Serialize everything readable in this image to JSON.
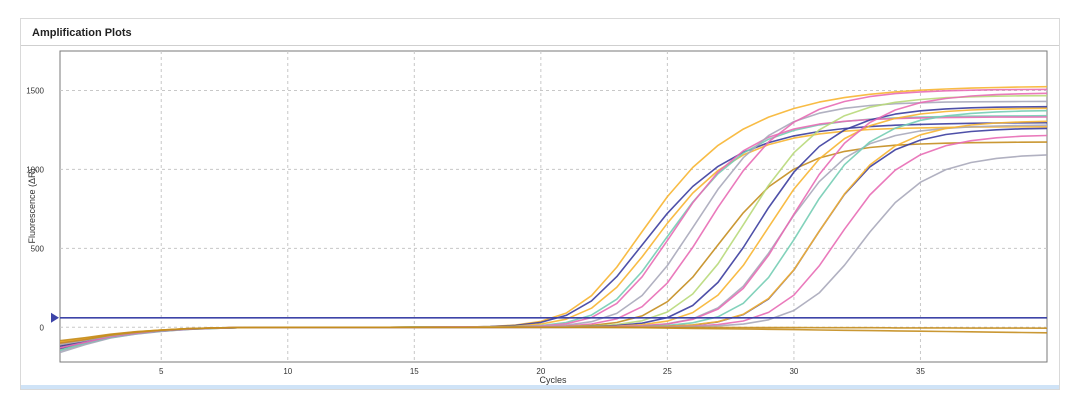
{
  "panel": {
    "title": "Amplification Plots"
  },
  "chart_data": {
    "type": "line",
    "title": "Amplification Plots",
    "xlabel": "Cycles",
    "ylabel": "Fluorescence (ΔR)",
    "xlim": [
      1,
      40
    ],
    "ylim": [
      -220,
      1750
    ],
    "x_ticks": [
      5,
      10,
      15,
      20,
      25,
      30,
      35
    ],
    "y_ticks": [
      0,
      500,
      1000,
      1500
    ],
    "grid": true,
    "threshold": 60,
    "threshold_color": "#3d44a8",
    "x": [
      1,
      2,
      3,
      4,
      5,
      6,
      7,
      8,
      9,
      10,
      11,
      12,
      13,
      14,
      15,
      16,
      17,
      18,
      19,
      20,
      21,
      22,
      23,
      24,
      25,
      26,
      27,
      28,
      29,
      30,
      31,
      32,
      33,
      34,
      35,
      36,
      37,
      38,
      39,
      40
    ],
    "series": [
      {
        "color": "#f7b531",
        "values": [
          -100,
          -72,
          -48,
          -30,
          -18,
          -10,
          -5,
          -2,
          -1,
          -1,
          0,
          0,
          0,
          0,
          1,
          1,
          2,
          5,
          14,
          37,
          90,
          200,
          381,
          606,
          828,
          1012,
          1152,
          1255,
          1331,
          1386,
          1426,
          1455,
          1476,
          1491,
          1502,
          1509,
          1515,
          1519,
          1522,
          1524
        ]
      },
      {
        "color": "#3b3d9e",
        "values": [
          -130,
          -95,
          -60,
          -38,
          -22,
          -12,
          -6,
          -3,
          -1,
          -1,
          0,
          0,
          0,
          0,
          1,
          1,
          2,
          4,
          12,
          31,
          75,
          167,
          321,
          521,
          722,
          892,
          1019,
          1109,
          1170,
          1212,
          1240,
          1259,
          1271,
          1280,
          1285,
          1289,
          1292,
          1294,
          1295,
          1296
        ]
      },
      {
        "color": "#f7b531",
        "values": [
          -140,
          -98,
          -62,
          -40,
          -24,
          -13,
          -7,
          -3,
          -2,
          -1,
          0,
          0,
          0,
          0,
          1,
          1,
          1,
          3,
          7,
          20,
          51,
          121,
          253,
          446,
          659,
          850,
          993,
          1092,
          1157,
          1198,
          1225,
          1242,
          1253,
          1259,
          1263,
          1266,
          1268,
          1269,
          1270,
          1270
        ]
      },
      {
        "color": "#74cdb4",
        "values": [
          -120,
          -90,
          -58,
          -36,
          -22,
          -12,
          -6,
          -3,
          -1,
          -1,
          0,
          0,
          0,
          0,
          1,
          1,
          1,
          2,
          4,
          11,
          30,
          77,
          178,
          353,
          575,
          793,
          973,
          1103,
          1191,
          1247,
          1282,
          1304,
          1318,
          1326,
          1332,
          1335,
          1337,
          1338,
          1339,
          1340
        ]
      },
      {
        "color": "#e86bb5",
        "values": [
          -110,
          -84,
          -54,
          -34,
          -20,
          -11,
          -5,
          -2,
          -1,
          -1,
          0,
          0,
          0,
          0,
          0,
          1,
          1,
          1,
          3,
          8,
          22,
          61,
          151,
          320,
          550,
          788,
          983,
          1118,
          1204,
          1256,
          1287,
          1305,
          1316,
          1322,
          1326,
          1328,
          1330,
          1331,
          1331,
          1332
        ]
      },
      {
        "color": "#a9a9ba",
        "values": [
          -150,
          -105,
          -66,
          -42,
          -25,
          -14,
          -7,
          -3,
          -2,
          -1,
          0,
          0,
          0,
          0,
          0,
          0,
          1,
          1,
          2,
          5,
          13,
          35,
          88,
          201,
          391,
          631,
          874,
          1074,
          1214,
          1303,
          1356,
          1387,
          1405,
          1416,
          1422,
          1426,
          1428,
          1429,
          1430,
          1431
        ]
      },
      {
        "color": "#e86bb5",
        "values": [
          -105,
          -80,
          -52,
          -33,
          -20,
          -11,
          -5,
          -2,
          -1,
          -1,
          0,
          0,
          0,
          0,
          0,
          0,
          1,
          1,
          1,
          3,
          8,
          21,
          53,
          130,
          281,
          506,
          760,
          992,
          1174,
          1299,
          1380,
          1430,
          1461,
          1480,
          1491,
          1498,
          1502,
          1505,
          1506,
          1507
        ]
      },
      {
        "color": "#c48d1e",
        "values": [
          -95,
          -74,
          -49,
          -31,
          -19,
          -10,
          -5,
          -2,
          -1,
          -1,
          0,
          0,
          0,
          0,
          0,
          0,
          0,
          1,
          1,
          2,
          5,
          12,
          30,
          72,
          162,
          317,
          522,
          725,
          889,
          1001,
          1072,
          1114,
          1139,
          1153,
          1161,
          1166,
          1169,
          1171,
          1172,
          1173
        ]
      },
      {
        "color": "#b8d97a",
        "values": [
          -125,
          -92,
          -59,
          -37,
          -22,
          -12,
          -6,
          -3,
          -1,
          -1,
          0,
          0,
          0,
          0,
          0,
          0,
          0,
          1,
          1,
          2,
          3,
          7,
          17,
          41,
          97,
          211,
          402,
          649,
          900,
          1106,
          1250,
          1340,
          1394,
          1425,
          1443,
          1454,
          1460,
          1464,
          1466,
          1467
        ]
      },
      {
        "color": "#3b3d9e",
        "values": [
          -135,
          -97,
          -61,
          -39,
          -23,
          -13,
          -6,
          -3,
          -2,
          -1,
          0,
          0,
          0,
          0,
          0,
          0,
          0,
          0,
          1,
          1,
          2,
          5,
          11,
          26,
          61,
          138,
          284,
          505,
          758,
          983,
          1145,
          1250,
          1313,
          1350,
          1371,
          1383,
          1390,
          1394,
          1396,
          1397
        ]
      },
      {
        "color": "#f7b531",
        "values": [
          -115,
          -87,
          -56,
          -35,
          -21,
          -11,
          -6,
          -2,
          -1,
          -1,
          0,
          0,
          0,
          0,
          0,
          0,
          0,
          0,
          1,
          1,
          2,
          3,
          7,
          16,
          39,
          93,
          204,
          392,
          634,
          875,
          1066,
          1195,
          1276,
          1323,
          1351,
          1367,
          1376,
          1382,
          1385,
          1387
        ]
      },
      {
        "color": "#a9a9ba",
        "values": [
          -160,
          -110,
          -68,
          -43,
          -26,
          -14,
          -7,
          -3,
          -2,
          -1,
          0,
          0,
          0,
          0,
          0,
          0,
          0,
          0,
          0,
          1,
          1,
          2,
          4,
          9,
          22,
          53,
          123,
          260,
          469,
          710,
          922,
          1071,
          1162,
          1214,
          1244,
          1260,
          1270,
          1275,
          1278,
          1280
        ]
      },
      {
        "color": "#e86bb5",
        "values": [
          -100,
          -77,
          -51,
          -32,
          -19,
          -10,
          -5,
          -2,
          -1,
          -1,
          0,
          0,
          0,
          0,
          0,
          0,
          0,
          0,
          0,
          1,
          1,
          2,
          4,
          9,
          21,
          50,
          115,
          246,
          456,
          716,
          968,
          1166,
          1297,
          1376,
          1423,
          1449,
          1465,
          1474,
          1479,
          1482
        ]
      },
      {
        "color": "#74cdb4",
        "values": [
          -145,
          -100,
          -64,
          -41,
          -24,
          -13,
          -7,
          -3,
          -2,
          -1,
          0,
          0,
          0,
          0,
          0,
          0,
          0,
          0,
          0,
          0,
          1,
          1,
          2,
          5,
          12,
          28,
          66,
          152,
          316,
          555,
          815,
          1030,
          1174,
          1261,
          1311,
          1339,
          1355,
          1364,
          1369,
          1372
        ]
      },
      {
        "color": "#3b3d9e",
        "values": [
          -120,
          -90,
          -58,
          -36,
          -22,
          -12,
          -6,
          -3,
          -1,
          -1,
          0,
          0,
          0,
          0,
          0,
          0,
          0,
          0,
          0,
          0,
          0,
          1,
          1,
          3,
          6,
          14,
          34,
          80,
          180,
          363,
          608,
          842,
          1016,
          1124,
          1186,
          1221,
          1240,
          1251,
          1257,
          1260
        ]
      },
      {
        "color": "#f7b531",
        "values": [
          -90,
          -70,
          -46,
          -29,
          -18,
          -9,
          -5,
          -2,
          -1,
          -1,
          0,
          0,
          0,
          0,
          0,
          0,
          0,
          0,
          0,
          0,
          0,
          1,
          1,
          3,
          6,
          15,
          35,
          82,
          183,
          364,
          608,
          845,
          1028,
          1148,
          1219,
          1259,
          1281,
          1294,
          1301,
          1305
        ]
      },
      {
        "color": "#e86bb5",
        "values": [
          -130,
          -95,
          -60,
          -38,
          -22,
          -12,
          -6,
          -3,
          -1,
          -1,
          0,
          0,
          0,
          0,
          0,
          0,
          0,
          0,
          0,
          0,
          0,
          0,
          1,
          1,
          3,
          7,
          17,
          40,
          94,
          204,
          389,
          621,
          838,
          995,
          1093,
          1150,
          1182,
          1200,
          1210,
          1215
        ]
      },
      {
        "color": "#a9a9ba",
        "values": [
          -110,
          -84,
          -54,
          -34,
          -20,
          -11,
          -5,
          -2,
          -1,
          -1,
          0,
          0,
          0,
          0,
          0,
          0,
          0,
          0,
          0,
          0,
          0,
          0,
          0,
          1,
          2,
          4,
          9,
          20,
          47,
          106,
          218,
          393,
          603,
          790,
          919,
          999,
          1044,
          1070,
          1084,
          1092
        ]
      },
      {
        "color": "#c48d1e",
        "values": [
          -100,
          -78,
          -50,
          -32,
          -19,
          -10,
          -5,
          -2,
          -1,
          -1,
          0,
          0,
          0,
          0,
          0,
          0,
          0,
          0,
          0,
          0,
          0,
          -1,
          -2,
          -3,
          -5,
          -7,
          -9,
          -11,
          -13,
          -15,
          -17,
          -19,
          -21,
          -23,
          -25,
          -27,
          -29,
          -31,
          -33,
          -35
        ]
      },
      {
        "color": "#c48d1e",
        "values": [
          -85,
          -66,
          -44,
          -28,
          -17,
          -9,
          -4,
          -2,
          -1,
          0,
          0,
          0,
          0,
          0,
          0,
          0,
          0,
          0,
          0,
          0,
          0,
          0,
          0,
          0,
          -1,
          -1,
          -1,
          -2,
          -2,
          -2,
          -3,
          -3,
          -3,
          -4,
          -4,
          -4,
          -5,
          -5,
          -5,
          -6
        ]
      }
    ]
  }
}
